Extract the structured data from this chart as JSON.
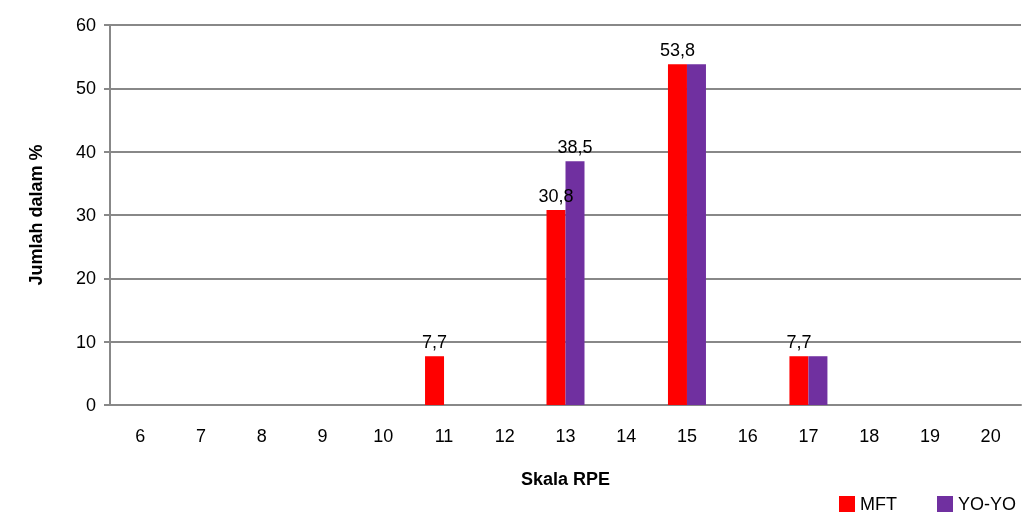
{
  "chart_data": {
    "type": "bar",
    "xlabel": "Skala RPE",
    "ylabel": "Jumlah dalam %",
    "categories": [
      "6",
      "7",
      "8",
      "9",
      "10",
      "11",
      "12",
      "13",
      "14",
      "15",
      "16",
      "17",
      "18",
      "19",
      "20"
    ],
    "series": [
      {
        "name": "MFT",
        "color": "#ff0000",
        "values": [
          0,
          0,
          0,
          0,
          0,
          7.7,
          0,
          30.8,
          0,
          53.8,
          0,
          7.7,
          0,
          0,
          0
        ],
        "value_labels": [
          null,
          null,
          null,
          null,
          null,
          "7,7",
          null,
          "30,8",
          null,
          "53,8",
          null,
          "7,7",
          null,
          null,
          null
        ]
      },
      {
        "name": "YO-YO",
        "color": "#7030a0",
        "values": [
          0,
          0,
          0,
          0,
          0,
          0,
          0,
          38.5,
          0,
          53.8,
          0,
          7.7,
          0,
          0,
          0
        ],
        "value_labels": [
          null,
          null,
          null,
          null,
          null,
          null,
          null,
          "38,5",
          null,
          null,
          null,
          null,
          null,
          null,
          null
        ]
      }
    ],
    "ylim": [
      0,
      60
    ],
    "yticks": [
      0,
      10,
      20,
      30,
      40,
      50,
      60
    ],
    "grid": "y",
    "legend": "bottom right"
  }
}
